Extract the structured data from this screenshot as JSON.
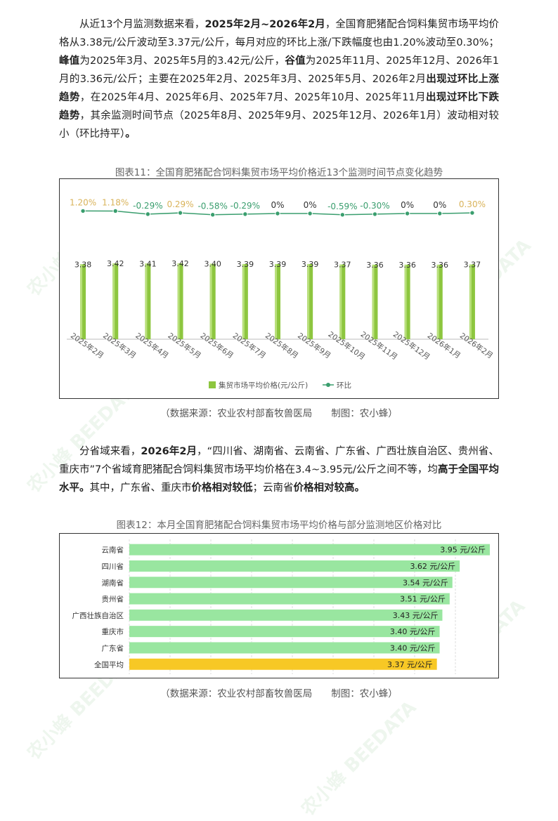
{
  "para1": {
    "s1": "从近13个月监测数据来看，",
    "s2": "2025年2月~2026年2月",
    "s3": "，全国育肥猪配合饲料集贸市场平均价格从3.38元/公斤波动至3.37元/公斤，每月对应的环比上涨/下跌幅度也由1.20%波动至0.30%；",
    "s4": "峰值",
    "s5": "为2025年3月、2025年5月的3.42元/公斤，",
    "s6": "谷值",
    "s7": "为2025年11月、2025年12月、2026年1月的3.36元/公斤；主要在2025年2月、2025年3月、2025年5月、2026年2月",
    "s8": "出现过环比上涨趋势",
    "s9": "，在2025年4月、2025年6月、2025年7月、2025年10月、2025年11月",
    "s10": "出现过环比下跌趋势",
    "s11": "，其余监测时间节点（2025年8月、2025年9月、2025年12月、2026年1月）波动相对较小（环比持平）",
    "s12": "。"
  },
  "chart1_caption": "图表11：全国育肥猪配合饲料集贸市场平均价格近13个监测时间节点变化趋势",
  "chart1_source": "（数据来源：农业农村部畜牧兽医局　　制图：农小蜂）",
  "para2": {
    "s1": "分省域来看，",
    "s2": "2026年2月",
    "s3": "，“四川省、湖南省、云南省、广东省、广西壮族自治区、贵州省、重庆市”7个省域育肥猪配合饲料集贸市场平均价格在3.4~3.95元/公斤之间不等，均",
    "s4": "高于全国平均水平。",
    "s5": "其中，广东省、重庆市",
    "s6": "价格相对较低",
    "s7": "；云南省",
    "s8": "价格相对较高。"
  },
  "chart2_caption": "图表12：本月全国育肥猪配合饲料集贸市场平均价格与部分监测地区价格对比",
  "chart2_source": "（数据来源：农业农村部畜牧兽医局　　制图：农小蜂）",
  "watermark": "农小蜂 BEEDATA",
  "chart_data": [
    {
      "type": "bar",
      "categories": [
        "2025年2月",
        "2025年3月",
        "2025年4月",
        "2025年5月",
        "2025年6月",
        "2025年7月",
        "2025年8月",
        "2025年9月",
        "2025年10月",
        "2025年11月",
        "2025年12月",
        "2026年1月",
        "2026年2月"
      ],
      "series": [
        {
          "name": "集贸市场平均价格(元/公斤)",
          "values": [
            3.38,
            3.42,
            3.41,
            3.42,
            3.4,
            3.39,
            3.39,
            3.39,
            3.37,
            3.36,
            3.36,
            3.36,
            3.37
          ],
          "labels": [
            "3.38",
            "3.42",
            "3.41",
            "3.42",
            "3.40",
            "3.39",
            "3.39",
            "3.39",
            "3.37",
            "3.36",
            "3.36",
            "3.36",
            "3.37"
          ],
          "color": "#8dc63f"
        },
        {
          "name": "环比",
          "type": "line",
          "values": [
            1.2,
            1.18,
            -0.29,
            0.29,
            -0.58,
            -0.29,
            0,
            0,
            -0.59,
            -0.3,
            0,
            0,
            0.3
          ],
          "labels": [
            "1.20%",
            "1.18%",
            "-0.29%",
            "0.29%",
            "-0.58%",
            "-0.29%",
            "0%",
            "0%",
            "-0.59%",
            "-0.30%",
            "0%",
            "0%",
            "0.30%"
          ],
          "color": "#3a9e6e",
          "up_color": "#d9b35a",
          "down_color": "#3a9e6e",
          "zero_color": "#333333"
        }
      ],
      "legend": "bottom"
    },
    {
      "type": "bar",
      "orientation": "horizontal",
      "categories": [
        "云南省",
        "四川省",
        "湖南省",
        "贵州省",
        "广西壮族自治区",
        "重庆市",
        "广东省",
        "全国平均"
      ],
      "values": [
        3.95,
        3.62,
        3.54,
        3.51,
        3.43,
        3.4,
        3.4,
        3.37
      ],
      "labels": [
        "3.95 元/公斤",
        "3.62 元/公斤",
        "3.54 元/公斤",
        "3.51 元/公斤",
        "3.43 元/公斤",
        "3.40 元/公斤",
        "3.40 元/公斤",
        "3.37 元/公斤"
      ],
      "colors": [
        "#99e6a0",
        "#99e6a0",
        "#99e6a0",
        "#99e6a0",
        "#99e6a0",
        "#99e6a0",
        "#99e6a0",
        "#f7c825"
      ],
      "xlim": [
        0,
        4.2
      ]
    }
  ]
}
